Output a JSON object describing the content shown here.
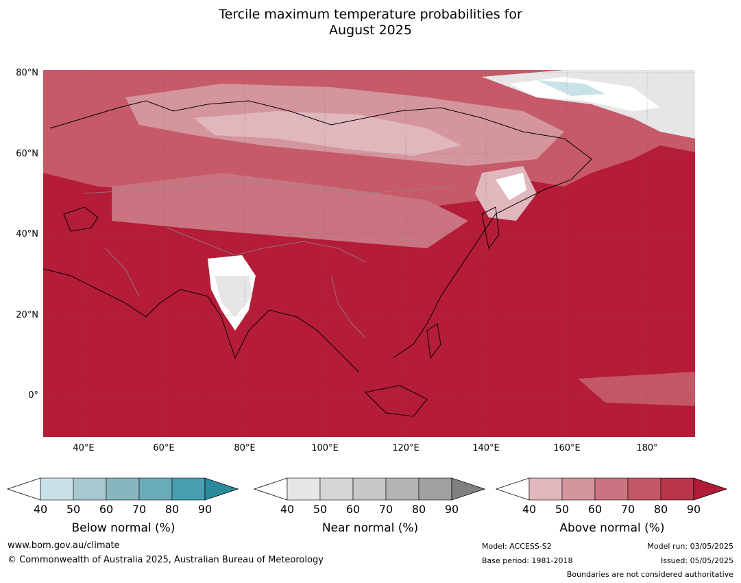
{
  "title_line1": "Tercile maximum temperature probabilities for",
  "title_line2": "August 2025",
  "lat_labels": [
    "80°N",
    "60°N",
    "40°N",
    "20°N",
    "0°"
  ],
  "lon_labels": [
    "40°E",
    "60°E",
    "80°E",
    "100°E",
    "120°E",
    "140°E",
    "160°E",
    "180°"
  ],
  "map": {
    "lon_range": [
      30,
      192
    ],
    "lat_range": [
      -10,
      81
    ],
    "ocean_base_color": "#b51c38",
    "colorbars": [
      {
        "title": "Below normal (%)",
        "ticks": [
          "40",
          "50",
          "60",
          "70",
          "80",
          "90"
        ],
        "colors": [
          "#ffffff",
          "#c9e2e8",
          "#a6c8ce",
          "#88b6bf",
          "#6aabb8",
          "#46a0b0",
          "#2b8a9c"
        ]
      },
      {
        "title": "Near normal (%)",
        "ticks": [
          "40",
          "50",
          "60",
          "70",
          "80",
          "90"
        ],
        "colors": [
          "#ffffff",
          "#e6e6e6",
          "#d6d6d6",
          "#c8c8c8",
          "#b4b4b4",
          "#a0a0a0",
          "#808080"
        ]
      },
      {
        "title": "Above normal (%)",
        "ticks": [
          "40",
          "50",
          "60",
          "70",
          "80",
          "90"
        ],
        "colors": [
          "#ffffff",
          "#e0b7bd",
          "#d4959d",
          "#c97480",
          "#c35766",
          "#b8354a",
          "#b01c38"
        ]
      }
    ]
  },
  "footer": {
    "website": "www.bom.gov.au/climate",
    "copyright": "© Commonwealth of Australia 2025, Australian Bureau of Meteorology",
    "model": "Model: ACCESS-S2",
    "base_period": "Base period: 1981-2018",
    "model_run": "Model run: 03/05/2025",
    "issued": "Issued: 05/05/2025",
    "disclaimer": "Boundaries are not considered authoritative"
  }
}
